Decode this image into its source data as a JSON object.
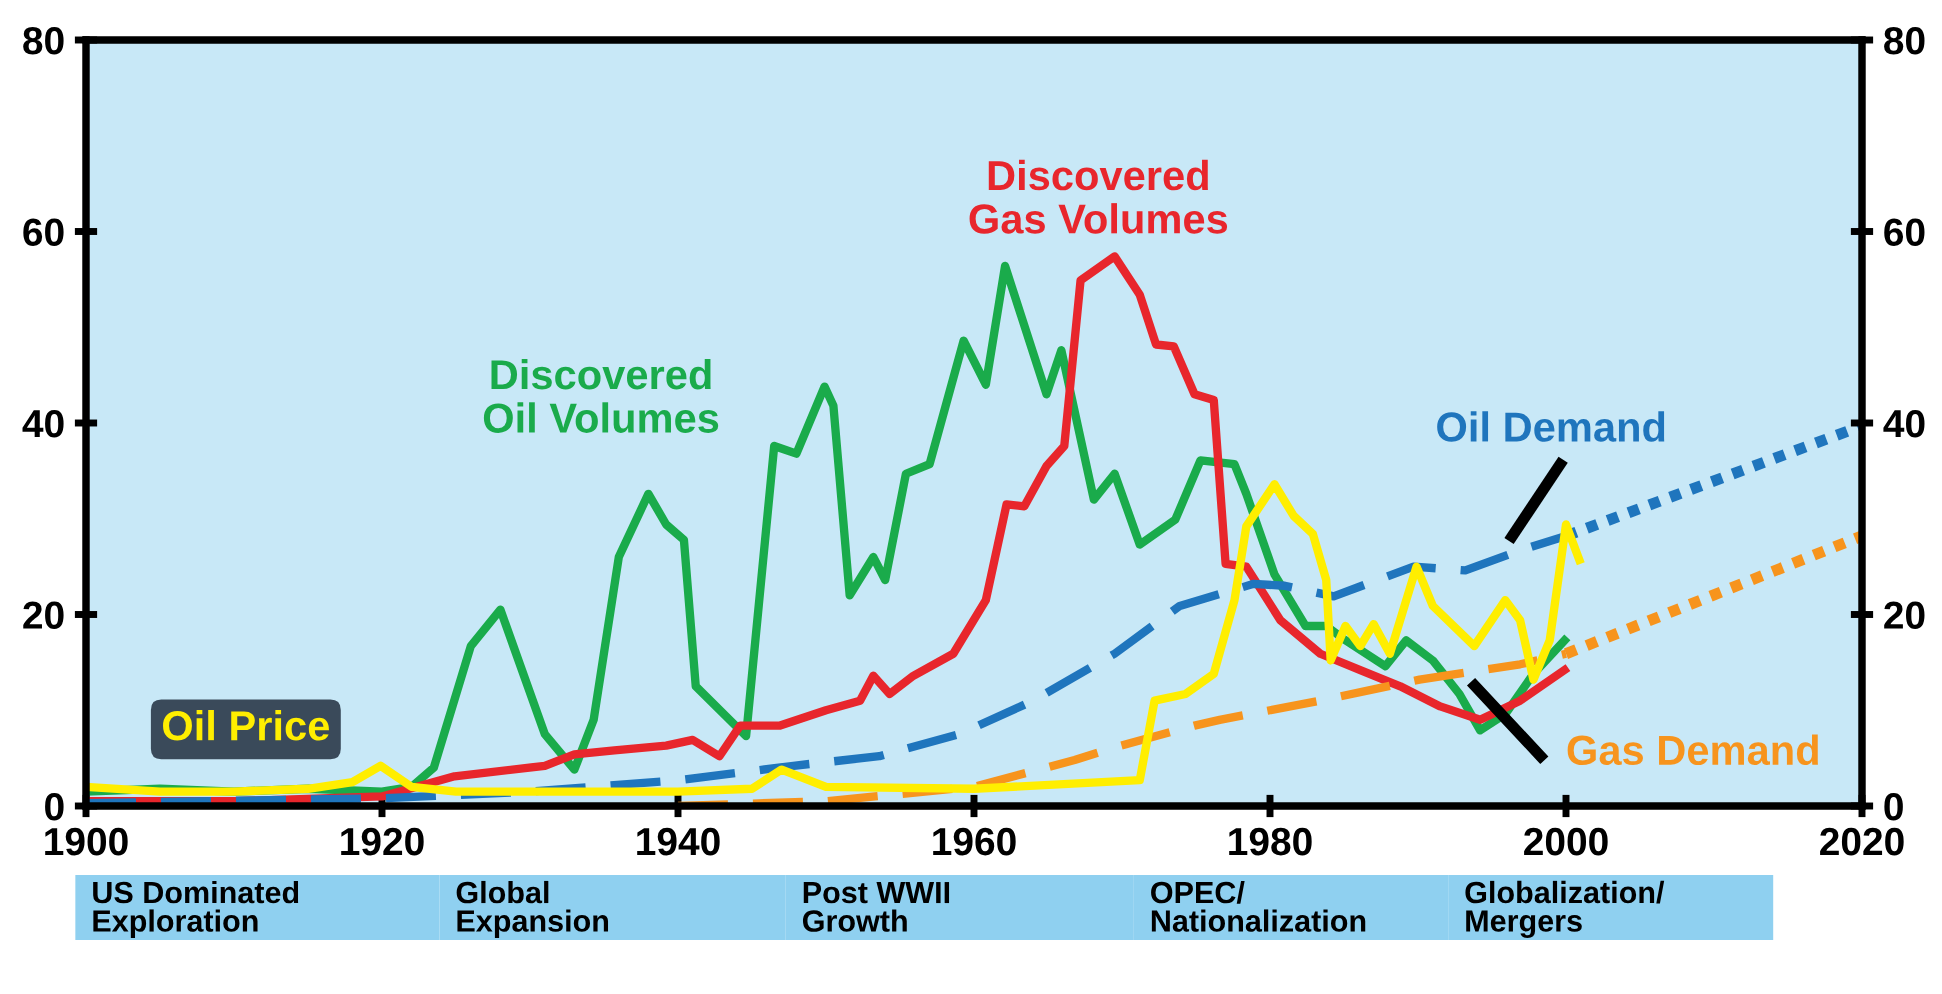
{
  "chart_data": {
    "type": "line",
    "xlim": [
      1900,
      2020
    ],
    "xticks": [
      1900,
      1920,
      1940,
      1960,
      1980,
      2000,
      2020
    ],
    "ylim": [
      0,
      80
    ],
    "yticks": [
      0,
      20,
      40,
      60,
      80
    ],
    "y2lim": [
      0,
      80
    ],
    "y2ticks": [
      0,
      20,
      40,
      60,
      80
    ],
    "grid": false,
    "legend": false,
    "series": [
      {
        "name": "Discovered\nOil Volumes",
        "color": "#1aab4b",
        "line_style": "solid",
        "x": [
          1900,
          1905,
          1910,
          1915,
          1920,
          1922,
          1923.5,
          1926,
          1928,
          1931,
          1933,
          1934.3,
          1936,
          1938,
          1939.2,
          1940.4,
          1941.2,
          1944.6,
          1946.5,
          1948,
          1949.9,
          1950.5,
          1951.6,
          1953.2,
          1954,
          1955.4,
          1957,
          1959.3,
          1960.8,
          1962.1,
          1964.9,
          1965.9,
          1968.1,
          1969.5,
          1971.2,
          1973.6,
          1975.3,
          1977.6,
          1978.4,
          1980.3,
          1982.4,
          1983.8,
          1985.1,
          1987.8,
          1989.2,
          1991,
          1992.8,
          1994.2,
          1995.9,
          1997.8,
          1999.9
        ],
        "values": [
          1.5,
          1.8,
          1.5,
          1.8,
          1.5,
          2,
          4,
          16.7,
          20.5,
          7.5,
          3.8,
          9,
          26,
          32.6,
          29.4,
          27.8,
          12.5,
          7.3,
          37.6,
          36.8,
          43.8,
          41.8,
          22,
          26,
          23.6,
          34.7,
          35.7,
          48.6,
          44,
          56.4,
          43,
          47.6,
          32,
          34.7,
          27.3,
          29.9,
          36.1,
          35.7,
          32.6,
          24.2,
          18.8,
          18.8,
          17.3,
          14.6,
          17.3,
          15.2,
          11.7,
          7.9,
          9.6,
          13.8,
          17.3
        ]
      },
      {
        "name": "Discovered\nGas Volumes",
        "color": "#e8262c",
        "line_style": "solid",
        "x": [
          1900,
          1910,
          1920,
          1924.9,
          1931,
          1933,
          1935.7,
          1939.2,
          1941,
          1942.8,
          1944.2,
          1946.9,
          1950,
          1952.3,
          1953.2,
          1954.3,
          1955.9,
          1958.6,
          1960.8,
          1962.2,
          1963.4,
          1964.9,
          1966.1,
          1967.2,
          1969.5,
          1971.2,
          1972.3,
          1973.5,
          1974.9,
          1976.2,
          1977,
          1978.4,
          1980.7,
          1983.4,
          1986.1,
          1988.8,
          1991.5,
          1994.2,
          1996.9,
          1999.9
        ],
        "values": [
          0.5,
          0.5,
          1,
          3.1,
          4.2,
          5.4,
          5.8,
          6.3,
          6.9,
          5.2,
          8.4,
          8.4,
          10,
          11,
          13.6,
          11.7,
          13.6,
          15.9,
          21.5,
          31.5,
          31.3,
          35.5,
          37.6,
          54.9,
          57.4,
          53.4,
          48.2,
          48,
          43,
          42.4,
          25.3,
          25,
          19.4,
          15.9,
          14.2,
          12.5,
          10.4,
          9,
          11,
          14.2
        ]
      },
      {
        "name": "Oil Demand",
        "color": "#1f75bd",
        "line_style": "dashed",
        "x": [
          1900,
          1920,
          1930,
          1940.1,
          1947.8,
          1953.6,
          1959,
          1964,
          1969.5,
          1973.9,
          1978.9,
          1981,
          1984.3,
          1989.7,
          1993.2,
          1996.9,
          2000
        ],
        "values": [
          0.3,
          0.8,
          1.5,
          2.7,
          4.2,
          5.2,
          7.5,
          11,
          15.9,
          20.9,
          23.2,
          23,
          21.9,
          25,
          24.6,
          26.7,
          28.2
        ]
      },
      {
        "color": "#1f75bd",
        "line_style": "dotted",
        "x": [
          2000,
          2020
        ],
        "values": [
          28.2,
          39.7
        ]
      },
      {
        "name": "Gas Demand",
        "color": "#f7941d",
        "line_style": "dashed",
        "x": [
          1940,
          1950,
          1960,
          1966.8,
          1969.9,
          1974.9,
          1976.6,
          1983.4,
          1990.1,
          1996.9,
          2000
        ],
        "values": [
          0,
          0.5,
          2,
          4.8,
          6.3,
          8.4,
          9,
          11,
          13.2,
          14.8,
          15.9
        ]
      },
      {
        "color": "#f7941d",
        "line_style": "dotted",
        "x": [
          2000,
          2020
        ],
        "values": [
          15.9,
          28.2
        ]
      },
      {
        "name": "Oil Price",
        "color": "#ffee00",
        "line_style": "solid",
        "x": [
          1900,
          1905,
          1910,
          1915,
          1918,
          1919.9,
          1922,
          1925,
          1930,
          1940,
          1945,
          1947,
          1950,
          1960,
          1971.2,
          1972.2,
          1974.3,
          1976.2,
          1977.6,
          1978.4,
          1980.3,
          1981.6,
          1982.9,
          1983.8,
          1984.1,
          1985.1,
          1986.1,
          1987,
          1988.1,
          1989.9,
          1991,
          1993.8,
          1995.9,
          1996.9,
          1997.8,
          1998.9,
          2000,
          2000.9
        ],
        "values": [
          2,
          1.5,
          1.5,
          1.8,
          2.5,
          4.2,
          2,
          1.5,
          1.5,
          1.5,
          1.8,
          3.8,
          2,
          1.8,
          2.7,
          11,
          11.7,
          13.8,
          21.5,
          29.2,
          33.6,
          30.3,
          28.4,
          23.6,
          15.2,
          18.8,
          16.7,
          19,
          15.9,
          25,
          20.9,
          16.7,
          21.5,
          19.4,
          13.2,
          17.3,
          29.4,
          25.7
        ]
      }
    ],
    "annotations": [
      "US Dominated\nExploration",
      "Global\nExpansion",
      "Post WWII\nGrowth",
      "OPEC/\nNationalization",
      "Globalization/\nMergers"
    ]
  }
}
